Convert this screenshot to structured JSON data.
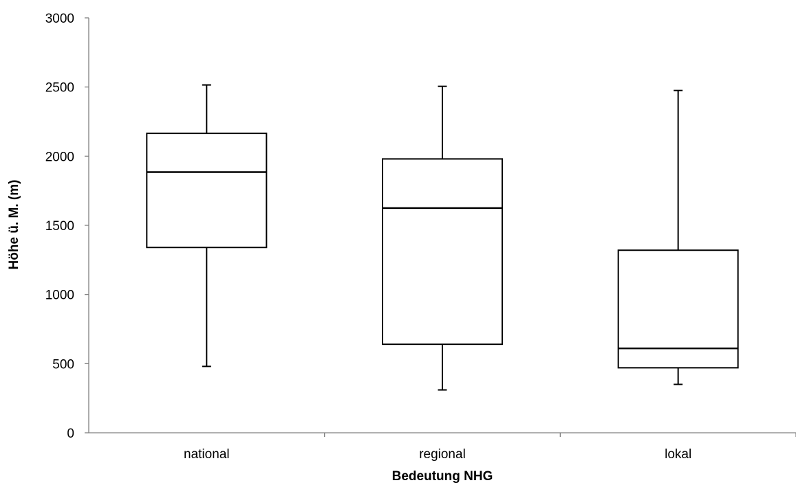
{
  "chart_data": {
    "type": "boxplot",
    "title": "",
    "xlabel": "Bedeutung NHG",
    "ylabel": "Höhe ü. M. (m)",
    "ylim": [
      0,
      3000
    ],
    "yticks": [
      "0",
      "500",
      "1000",
      "1500",
      "2000",
      "2500",
      "3000"
    ],
    "grid": false,
    "categories": [
      "national",
      "regional",
      "lokal"
    ],
    "boxes": [
      {
        "category": "national",
        "min": 480,
        "q1": 1340,
        "median": 1885,
        "q3": 2165,
        "max": 2515
      },
      {
        "category": "regional",
        "min": 310,
        "q1": 640,
        "median": 1625,
        "q3": 1980,
        "max": 2505
      },
      {
        "category": "lokal",
        "min": 350,
        "q1": 470,
        "median": 610,
        "q3": 1320,
        "max": 2475
      }
    ]
  }
}
